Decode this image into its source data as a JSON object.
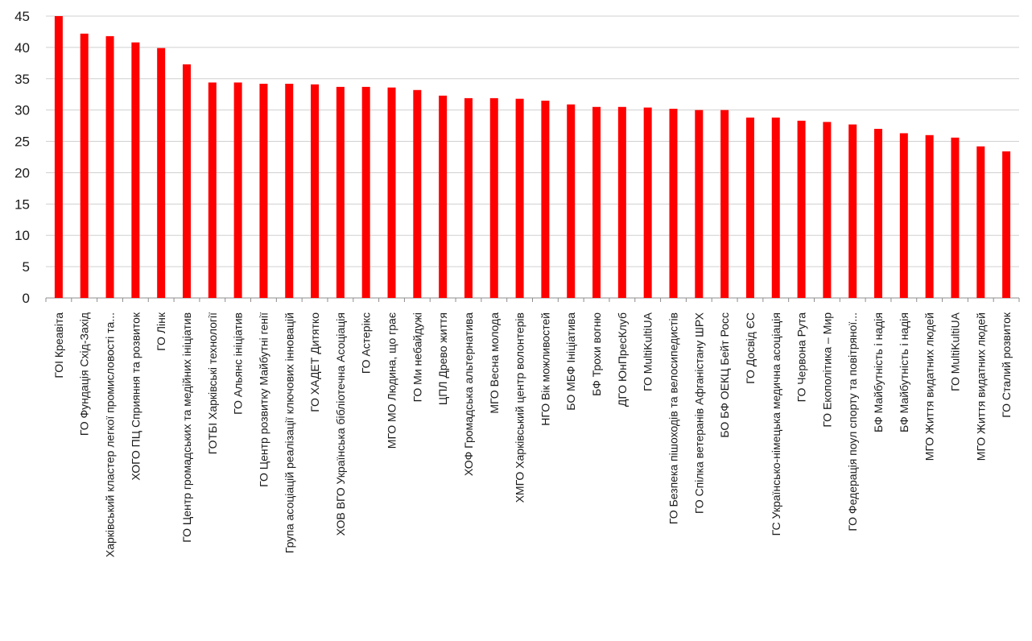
{
  "chart_data": {
    "type": "bar",
    "title": "",
    "xlabel": "",
    "ylabel": "",
    "ylim": [
      0,
      45
    ],
    "yticks": [
      0,
      5,
      10,
      15,
      20,
      25,
      30,
      35,
      40,
      45
    ],
    "grid": true,
    "bar_color": "#ff0000",
    "categories": [
      "ГОІ Креавіта",
      "ГО Фундація Схід-Захід",
      "Харківський кластер легкої промисловості та...",
      "ХОГО ПЦ Сприяння та розвиток",
      "ГО Лінк",
      "ГО Центр громадських та медійних ініціатив",
      "ГОТБІ Харківські технології",
      "ГО Альянс ініціатив",
      "ГО Центр розвитку Майбутні генії",
      "Група асоціацій реалізації ключових інновацій",
      "ГО ХАДЕТ Дитятко",
      "ХОВ ВГО Українська бібліотечна Асоціація",
      "ГО Астерікс",
      "МГО МО Людина, що грає",
      "ГО Ми небайдужі",
      "ЦПЛ Древо життя",
      "ХОФ Громадська альтернатива",
      "МГО Весна молода",
      "ХМГО Харківський центр волонтерів",
      "НГО Вік можливостей",
      "БО МБФ Ініціатива",
      "БФ Трохи вогню",
      "ДГО ЮнПресКлуб",
      "ГО MultiKultiUA",
      "ГО Безпека пішоходів та велосипедистів",
      "ГО Спілка ветеранів Афганістану ШРХ",
      "БО БФ ОЕКЦ Бейт Росс",
      "ГО Досвід ЄС",
      "ГС Українсько-німецька медична асоціація",
      "ГО Червона Рута",
      "ГО Екополітика – Мир",
      "ГО Федерація поул спорту та повітряної...",
      "БФ Майбутність і надія",
      "БФ Майбутність і надія",
      "МГО Життя видатних людей",
      "ГО MultiKultiUA",
      "МГО Життя видатних людей",
      "ГО Сталий розвиток"
    ],
    "values": [
      45.0,
      42.2,
      41.8,
      40.8,
      39.9,
      37.3,
      34.4,
      34.4,
      34.2,
      34.2,
      34.1,
      33.7,
      33.7,
      33.6,
      33.2,
      32.3,
      31.9,
      31.9,
      31.8,
      31.5,
      30.9,
      30.5,
      30.5,
      30.4,
      30.2,
      30.0,
      30.0,
      28.8,
      28.8,
      28.3,
      28.1,
      27.7,
      27.0,
      26.3,
      26.0,
      25.6,
      24.2,
      23.4
    ]
  }
}
